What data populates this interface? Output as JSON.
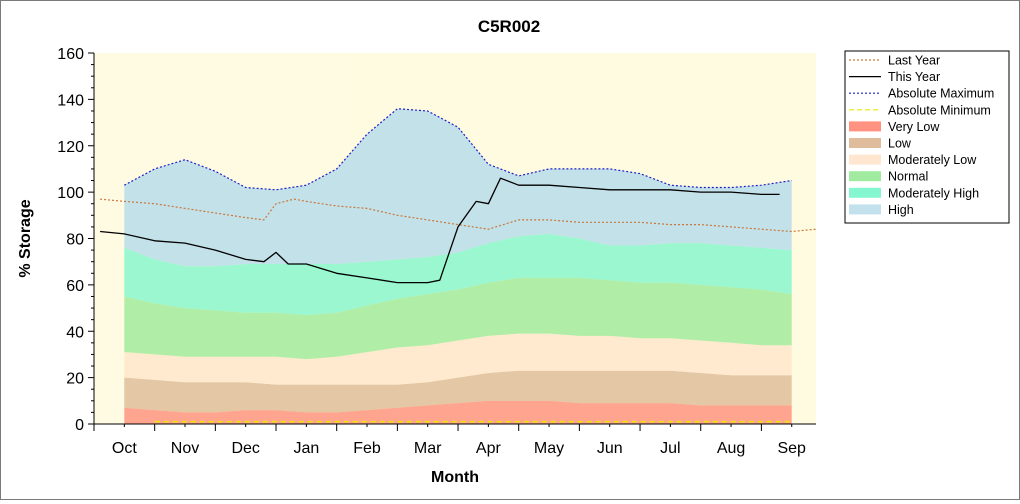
{
  "chart_data": {
    "type": "area",
    "title": "C5R002",
    "xlabel": "Month",
    "ylabel": "% Storage",
    "ylim": [
      0,
      160
    ],
    "yticks": [
      0,
      20,
      40,
      60,
      80,
      100,
      120,
      140,
      160
    ],
    "xlim": [
      -0.5,
      11.4
    ],
    "categories": [
      "Oct",
      "Nov",
      "Dec",
      "Jan",
      "Feb",
      "Mar",
      "Apr",
      "May",
      "Jun",
      "Jul",
      "Aug",
      "Sep"
    ],
    "grid": false,
    "legend_position": "right",
    "colors": {
      "plot_bg_left": "#fffbe2",
      "plot_bg_right": "#fffbe0",
      "last_year": "#c8783c",
      "this_year": "#000000",
      "abs_max": "#2020c8",
      "abs_min": "#e8e800",
      "very_low": "#ff7f6b",
      "low": "#d9b08a",
      "moderately_low": "#ffe2c8",
      "normal": "#8fe88f",
      "moderately_high": "#6ff5c8",
      "high": "#b9dcea"
    },
    "legend": [
      {
        "key": "last_year",
        "label": "Last Year",
        "kind": "line",
        "style": "dot"
      },
      {
        "key": "this_year",
        "label": "This Year",
        "kind": "line",
        "style": "solid"
      },
      {
        "key": "abs_max",
        "label": "Absolute Maximum",
        "kind": "line",
        "style": "dot"
      },
      {
        "key": "abs_min",
        "label": "Absolute Minimum",
        "kind": "line",
        "style": "dash"
      },
      {
        "key": "very_low",
        "label": "Very Low",
        "kind": "band"
      },
      {
        "key": "low",
        "label": "Low",
        "kind": "band"
      },
      {
        "key": "moderately_low",
        "label": "Moderately Low",
        "kind": "band"
      },
      {
        "key": "normal",
        "label": "Normal",
        "kind": "band"
      },
      {
        "key": "moderately_high",
        "label": "Moderately High",
        "kind": "band"
      },
      {
        "key": "high",
        "label": "High",
        "kind": "band"
      }
    ],
    "band_x": [
      0,
      0.5,
      1,
      1.5,
      2,
      2.5,
      3,
      3.5,
      4,
      4.5,
      5,
      5.5,
      6,
      6.5,
      7,
      7.5,
      8,
      8.5,
      9,
      9.5,
      10,
      10.5,
      11
    ],
    "bands": [
      {
        "key": "very_low",
        "upper": [
          7,
          6,
          5,
          5,
          6,
          6,
          5,
          5,
          6,
          7,
          8,
          9,
          10,
          10,
          10,
          9,
          9,
          9,
          9,
          8,
          8,
          8,
          8
        ]
      },
      {
        "key": "low",
        "upper": [
          20,
          19,
          18,
          18,
          18,
          17,
          17,
          17,
          17,
          17,
          18,
          20,
          22,
          23,
          23,
          23,
          23,
          23,
          23,
          22,
          21,
          21,
          21
        ]
      },
      {
        "key": "moderately_low",
        "upper": [
          31,
          30,
          29,
          29,
          29,
          29,
          28,
          29,
          31,
          33,
          34,
          36,
          38,
          39,
          39,
          38,
          38,
          37,
          37,
          36,
          35,
          34,
          34
        ]
      },
      {
        "key": "normal",
        "upper": [
          55,
          52,
          50,
          49,
          48,
          48,
          47,
          48,
          51,
          54,
          56,
          58,
          61,
          63,
          63,
          63,
          62,
          61,
          61,
          60,
          59,
          58,
          56
        ]
      },
      {
        "key": "moderately_high",
        "upper": [
          76,
          71,
          68,
          68,
          69,
          69,
          69,
          69,
          70,
          71,
          72,
          74,
          78,
          81,
          82,
          80,
          77,
          77,
          78,
          78,
          77,
          76,
          75
        ]
      },
      {
        "key": "high",
        "upper": [
          103,
          110,
          114,
          109,
          102,
          101,
          103,
          110,
          125,
          136,
          135,
          128,
          112,
          107,
          110,
          110,
          110,
          108,
          103,
          102,
          102,
          103,
          105
        ]
      }
    ],
    "series": [
      {
        "key": "abs_max",
        "name": "Absolute Maximum",
        "x": [
          0,
          0.5,
          1,
          1.5,
          2,
          2.5,
          3,
          3.5,
          4,
          4.5,
          5,
          5.5,
          6,
          6.5,
          7,
          7.5,
          8,
          8.5,
          9,
          9.5,
          10,
          10.5,
          11
        ],
        "y": [
          103,
          110,
          114,
          109,
          102,
          101,
          103,
          110,
          125,
          136,
          135,
          128,
          112,
          107,
          110,
          110,
          110,
          108,
          103,
          102,
          102,
          103,
          105
        ]
      },
      {
        "key": "abs_min",
        "name": "Absolute Minimum",
        "x": [
          0.5,
          2,
          3.5,
          5,
          6.5,
          8,
          9.5,
          11
        ],
        "y": [
          1,
          1,
          1,
          1,
          1,
          1,
          1,
          1
        ]
      },
      {
        "key": "last_year",
        "name": "Last Year",
        "x": [
          -0.4,
          0,
          0.5,
          1,
          1.5,
          2,
          2.3,
          2.5,
          2.8,
          3,
          3.5,
          4,
          4.5,
          5,
          5.5,
          6,
          6.5,
          7,
          7.5,
          8,
          8.5,
          9,
          9.5,
          10,
          10.5,
          11,
          11.4
        ],
        "y": [
          97,
          96,
          95,
          93,
          91,
          89,
          88,
          95,
          97,
          96,
          94,
          93,
          90,
          88,
          86,
          84,
          88,
          88,
          87,
          87,
          87,
          86,
          86,
          85,
          84,
          83,
          84
        ]
      },
      {
        "key": "this_year",
        "name": "This Year",
        "x": [
          -0.4,
          0,
          0.5,
          1,
          1.5,
          2,
          2.3,
          2.5,
          2.7,
          3,
          3.5,
          4,
          4.5,
          5,
          5.2,
          5.5,
          5.8,
          6,
          6.2,
          6.5,
          7,
          7.5,
          8,
          8.5,
          9,
          9.5,
          10,
          10.5,
          10.8
        ],
        "y": [
          83,
          82,
          79,
          78,
          75,
          71,
          70,
          74,
          69,
          69,
          65,
          63,
          61,
          61,
          62,
          85,
          96,
          95,
          106,
          103,
          103,
          102,
          101,
          101,
          101,
          100,
          100,
          99,
          99
        ]
      }
    ]
  }
}
